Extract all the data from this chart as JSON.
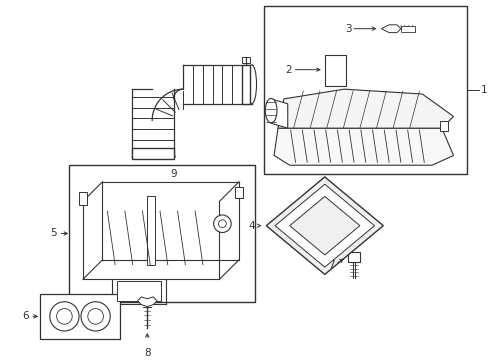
{
  "bg_color": "#ffffff",
  "line_color": "#333333",
  "dark_gray": "#555555",
  "fig_width": 4.89,
  "fig_height": 3.6,
  "dpi": 100
}
